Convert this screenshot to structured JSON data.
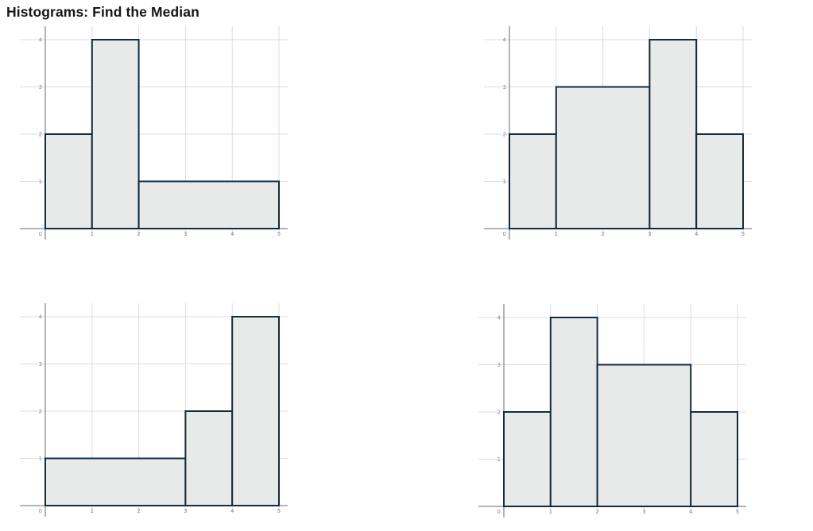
{
  "title": "Histograms: Find the Median",
  "colors": {
    "bar_fill": "#e8e9e9",
    "bar_stroke": "#132c3d",
    "grid": "#dcdcdc",
    "axis": "#9a9a9a",
    "tick_label": "#8a8a8a",
    "title_color": "#161616"
  },
  "chart_data": [
    {
      "type": "bar",
      "name": "top-left-histogram",
      "bins": [
        {
          "x0": 0,
          "x1": 1,
          "count": 2
        },
        {
          "x0": 1,
          "x1": 2,
          "count": 4
        },
        {
          "x0": 2,
          "x1": 5,
          "count": 1
        }
      ],
      "x_ticks": [
        0,
        1,
        2,
        3,
        4,
        5
      ],
      "y_ticks": [
        1,
        2,
        3,
        4
      ],
      "xlim": [
        -0.55,
        5.2
      ],
      "ylim": [
        0,
        4.3
      ],
      "grid": true,
      "xlabel": "",
      "ylabel": ""
    },
    {
      "type": "bar",
      "name": "top-right-histogram",
      "bins": [
        {
          "x0": 0,
          "x1": 1,
          "count": 2
        },
        {
          "x0": 1,
          "x1": 3,
          "count": 3
        },
        {
          "x0": 3,
          "x1": 4,
          "count": 4
        },
        {
          "x0": 4,
          "x1": 5,
          "count": 2
        }
      ],
      "x_ticks": [
        0,
        1,
        2,
        3,
        4,
        5
      ],
      "y_ticks": [
        1,
        2,
        3,
        4
      ],
      "xlim": [
        -0.55,
        5.2
      ],
      "ylim": [
        0,
        4.3
      ],
      "grid": true,
      "xlabel": "",
      "ylabel": ""
    },
    {
      "type": "bar",
      "name": "bottom-left-histogram",
      "bins": [
        {
          "x0": 0,
          "x1": 3,
          "count": 1
        },
        {
          "x0": 3,
          "x1": 4,
          "count": 2
        },
        {
          "x0": 4,
          "x1": 5,
          "count": 4
        }
      ],
      "x_ticks": [
        0,
        1,
        2,
        3,
        4,
        5
      ],
      "y_ticks": [
        1,
        2,
        3,
        4
      ],
      "xlim": [
        -0.55,
        5.2
      ],
      "ylim": [
        0,
        4.3
      ],
      "grid": true,
      "xlabel": "",
      "ylabel": ""
    },
    {
      "type": "bar",
      "name": "bottom-right-histogram",
      "bins": [
        {
          "x0": 0,
          "x1": 1,
          "count": 2
        },
        {
          "x0": 1,
          "x1": 2,
          "count": 4
        },
        {
          "x0": 2,
          "x1": 4,
          "count": 3
        },
        {
          "x0": 4,
          "x1": 5,
          "count": 2
        }
      ],
      "x_ticks": [
        0,
        1,
        2,
        3,
        4,
        5
      ],
      "y_ticks": [
        1,
        2,
        3,
        4
      ],
      "xlim": [
        -0.55,
        5.2
      ],
      "ylim": [
        0,
        4.3
      ],
      "grid": true,
      "xlabel": "",
      "ylabel": ""
    }
  ]
}
